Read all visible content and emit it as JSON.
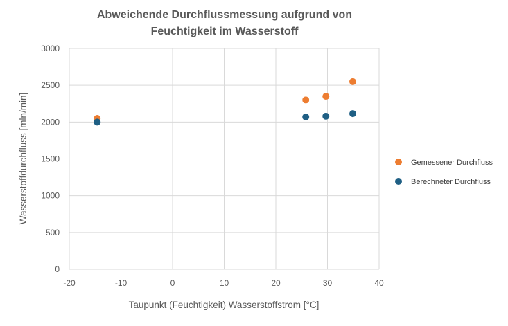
{
  "chart_data": {
    "type": "scatter",
    "title": [
      "Abweichende Durchflussmessung aufgrund von",
      "Feuchtigkeit im Wasserstoff"
    ],
    "xlabel": "Taupunkt (Feuchtigkeit) Wasserstoffstrom [°C]",
    "ylabel": "Wasserstoffdurchfluss [mln/min]",
    "xlim": [
      -20,
      40
    ],
    "ylim": [
      0,
      3000
    ],
    "xticks": [
      -20,
      -10,
      0,
      10,
      20,
      30,
      40
    ],
    "yticks": [
      0,
      500,
      1000,
      1500,
      2000,
      2500,
      3000
    ],
    "grid": true,
    "legend_position": "right",
    "series": [
      {
        "name": "Gemessener Durchfluss",
        "color": "#ED7D31",
        "x": [
          -14.6,
          25.8,
          29.7,
          34.9
        ],
        "y": [
          2050,
          2300,
          2350,
          2550
        ]
      },
      {
        "name": "Berechneter Durchfluss",
        "color": "#1F5F84",
        "x": [
          -14.6,
          25.8,
          29.7,
          34.9
        ],
        "y": [
          2000,
          2070,
          2080,
          2115
        ]
      }
    ]
  }
}
